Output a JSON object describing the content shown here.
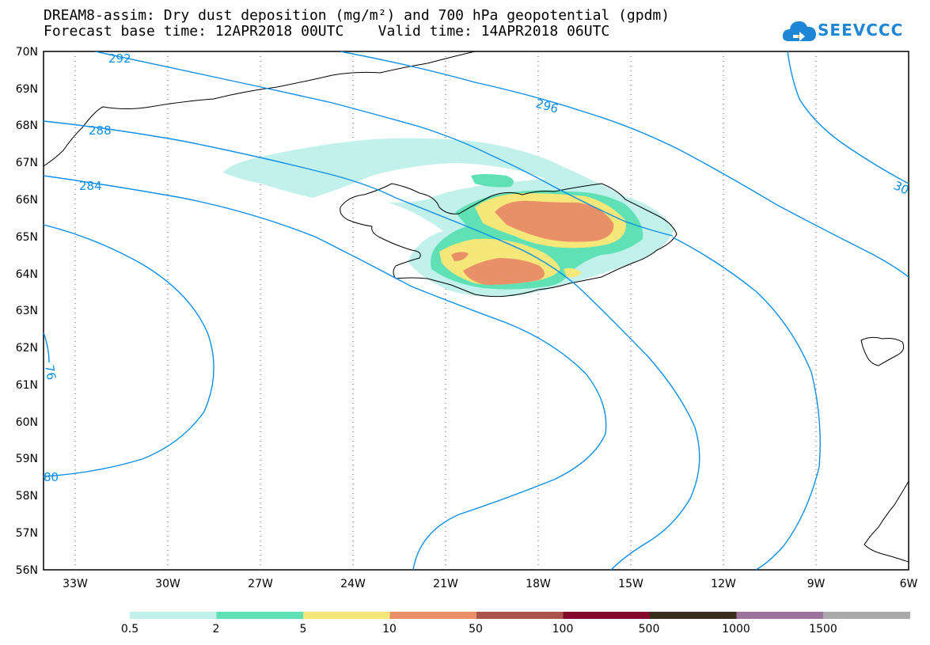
{
  "header": {
    "title_line1": "DREAM8-assim: Dry dust deposition (mg/m²) and 700 hPa geopotential (gpdm)",
    "title_line2": "Forecast base time: 12APR2018 00UTC    Valid time: 14APR2018 06UTC"
  },
  "logo": {
    "text": "SEEVCCC"
  },
  "map": {
    "lat_labels": [
      "70N",
      "69N",
      "68N",
      "67N",
      "66N",
      "65N",
      "64N",
      "63N",
      "62N",
      "61N",
      "60N",
      "59N",
      "58N",
      "57N",
      "56N"
    ],
    "lon_labels": [
      "33W",
      "30W",
      "27W",
      "24W",
      "21W",
      "18W",
      "15W",
      "12W",
      "9W",
      "6W"
    ],
    "contour_labels": [
      "292",
      "296",
      "288",
      "284",
      "30",
      "76",
      "80"
    ]
  },
  "legend": {
    "tick_labels": [
      "0.5",
      "2",
      "5",
      "10",
      "50",
      "100",
      "500",
      "1000",
      "1500"
    ],
    "colors": [
      "#c2f0eb",
      "#5fe0b5",
      "#f5e77a",
      "#e99068",
      "#a9544a",
      "#830a2c",
      "#3a2c1c",
      "#9b739c",
      "#a9a9a9"
    ]
  }
}
